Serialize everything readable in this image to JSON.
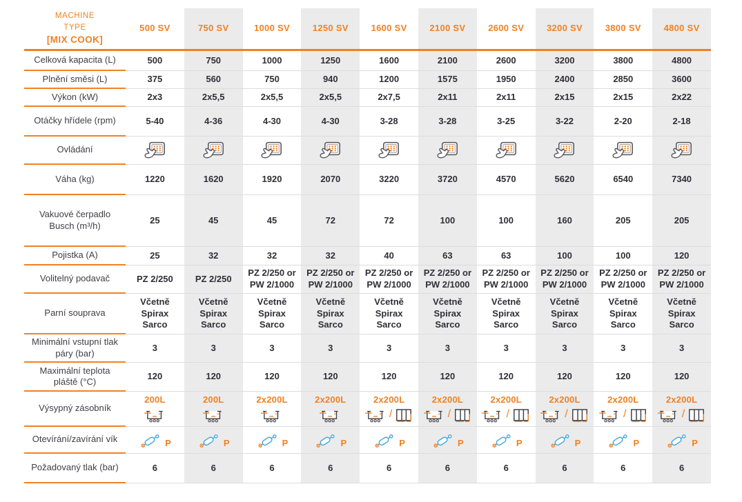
{
  "glyphs": {
    "slash": "/"
  },
  "colors": {
    "accent_orange": "#f08122",
    "icon_blue": "#3fa3de",
    "text_dark": "#2f2f37",
    "column_shade": "#ebebeb",
    "separator_gray": "#dcdcdc"
  },
  "table": {
    "corner": {
      "line1": "MACHINE",
      "line2": "TYPE",
      "line3": "[MIX COOK]"
    },
    "columns": [
      "500 SV",
      "750 SV",
      "1000 SV",
      "1250 SV",
      "1600 SV",
      "2100 SV",
      "2600 SV",
      "3200 SV",
      "3800 SV",
      "4800 SV"
    ],
    "rows": [
      {
        "label": "Celková kapacita (L)",
        "cells": [
          {
            "text": "500"
          },
          {
            "text": "750"
          },
          {
            "text": "1000"
          },
          {
            "text": "1250"
          },
          {
            "text": "1600"
          },
          {
            "text": "2100"
          },
          {
            "text": "2600"
          },
          {
            "text": "3200"
          },
          {
            "text": "3800"
          },
          {
            "text": "4800"
          }
        ]
      },
      {
        "label": "Plnění směsi (L)",
        "cells": [
          {
            "text": "375"
          },
          {
            "text": "560"
          },
          {
            "text": "750"
          },
          {
            "text": "940"
          },
          {
            "text": "1200"
          },
          {
            "text": "1575"
          },
          {
            "text": "1950"
          },
          {
            "text": "2400"
          },
          {
            "text": "2850"
          },
          {
            "text": "3600"
          }
        ]
      },
      {
        "label": "Výkon (kW)",
        "cells": [
          {
            "text": "2x3"
          },
          {
            "text": "2x5,5"
          },
          {
            "text": "2x5,5"
          },
          {
            "text": "2x5,5"
          },
          {
            "text": "2x7,5"
          },
          {
            "text": "2x11"
          },
          {
            "text": "2x11"
          },
          {
            "text": "2x15"
          },
          {
            "text": "2x15"
          },
          {
            "text": "2x22"
          }
        ]
      },
      {
        "label": "Otáčky hřídele (rpm)",
        "cells": [
          {
            "text": "5-40"
          },
          {
            "text": "4-36"
          },
          {
            "text": "4-30"
          },
          {
            "text": "4-30"
          },
          {
            "text": "3-28"
          },
          {
            "text": "3-28"
          },
          {
            "text": "3-25"
          },
          {
            "text": "3-22"
          },
          {
            "text": "2-20"
          },
          {
            "text": "2-18"
          }
        ]
      },
      {
        "label": "Ovládání",
        "cells": [
          {
            "icons": [
              "touch-panel"
            ]
          },
          {
            "icons": [
              "touch-panel"
            ]
          },
          {
            "icons": [
              "touch-panel"
            ]
          },
          {
            "icons": [
              "touch-panel"
            ]
          },
          {
            "icons": [
              "touch-panel"
            ]
          },
          {
            "icons": [
              "touch-panel"
            ]
          },
          {
            "icons": [
              "touch-panel"
            ]
          },
          {
            "icons": [
              "touch-panel"
            ]
          },
          {
            "icons": [
              "touch-panel"
            ]
          },
          {
            "icons": [
              "touch-panel"
            ]
          }
        ]
      },
      {
        "label": "Váha (kg)",
        "cells": [
          {
            "text": "1220"
          },
          {
            "text": "1620"
          },
          {
            "text": "1920"
          },
          {
            "text": "2070"
          },
          {
            "text": "3220"
          },
          {
            "text": "3720"
          },
          {
            "text": "4570"
          },
          {
            "text": "5620"
          },
          {
            "text": "6540"
          },
          {
            "text": "7340"
          }
        ]
      },
      {
        "label": "Vakuové čerpadlo Busch (m³/h)",
        "cells": [
          {
            "text": "25"
          },
          {
            "text": "45"
          },
          {
            "text": "45"
          },
          {
            "text": "72"
          },
          {
            "text": "72"
          },
          {
            "text": "100"
          },
          {
            "text": "100"
          },
          {
            "text": "160"
          },
          {
            "text": "205"
          },
          {
            "text": "205"
          }
        ]
      },
      {
        "label": "Pojistka (A)",
        "cells": [
          {
            "text": "25"
          },
          {
            "text": "32"
          },
          {
            "text": "32"
          },
          {
            "text": "32"
          },
          {
            "text": "40"
          },
          {
            "text": "63"
          },
          {
            "text": "63"
          },
          {
            "text": "100"
          },
          {
            "text": "100"
          },
          {
            "text": "120"
          }
        ]
      },
      {
        "label": "Volitelný podavač",
        "cells": [
          {
            "text": "PZ 2/250"
          },
          {
            "text": "PZ 2/250"
          },
          {
            "text": "PZ 2/250 or PW 2/1000"
          },
          {
            "text": "PZ 2/250 or PW 2/1000"
          },
          {
            "text": "PZ 2/250 or PW 2/1000"
          },
          {
            "text": "PZ 2/250 or PW 2/1000"
          },
          {
            "text": "PZ 2/250 or PW 2/1000"
          },
          {
            "text": "PZ 2/250 or PW 2/1000"
          },
          {
            "text": "PZ 2/250 or PW 2/1000"
          },
          {
            "text": "PZ 2/250 or PW 2/1000"
          }
        ]
      },
      {
        "label": "Parní souprava",
        "cells": [
          {
            "text": "Včetně Spirax Sarco"
          },
          {
            "text": "Včetně Spirax Sarco"
          },
          {
            "text": "Včetně Spirax Sarco"
          },
          {
            "text": "Včetně Spirax Sarco"
          },
          {
            "text": "Včetně Spirax Sarco"
          },
          {
            "text": "Včetně Spirax Sarco"
          },
          {
            "text": "Včetně Spirax Sarco"
          },
          {
            "text": "Včetně Spirax Sarco"
          },
          {
            "text": "Včetně Spirax Sarco"
          },
          {
            "text": "Včetně Spirax Sarco"
          }
        ]
      },
      {
        "label": "Minimální vstupní tlak páry (bar)",
        "cells": [
          {
            "text": "3"
          },
          {
            "text": "3"
          },
          {
            "text": "3"
          },
          {
            "text": "3"
          },
          {
            "text": "3"
          },
          {
            "text": "3"
          },
          {
            "text": "3"
          },
          {
            "text": "3"
          },
          {
            "text": "3"
          },
          {
            "text": "3"
          }
        ]
      },
      {
        "label": "Maximální teplota pláště (°C)",
        "cells": [
          {
            "text": "120"
          },
          {
            "text": "120"
          },
          {
            "text": "120"
          },
          {
            "text": "120"
          },
          {
            "text": "120"
          },
          {
            "text": "120"
          },
          {
            "text": "120"
          },
          {
            "text": "120"
          },
          {
            "text": "120"
          },
          {
            "text": "120"
          }
        ]
      },
      {
        "label": "Výsypný zásobník",
        "cells": [
          {
            "badge": "200L",
            "icons": [
              "cart"
            ]
          },
          {
            "badge": "200L",
            "icons": [
              "cart"
            ]
          },
          {
            "badge": "2x200L",
            "icons": [
              "cart"
            ]
          },
          {
            "badge": "2x200L",
            "icons": [
              "cart"
            ]
          },
          {
            "badge": "2x200L",
            "icons": [
              "cart",
              "slash",
              "bin"
            ]
          },
          {
            "badge": "2x200L",
            "icons": [
              "cart",
              "slash",
              "bin"
            ]
          },
          {
            "badge": "2x200L",
            "icons": [
              "cart",
              "slash",
              "bin"
            ]
          },
          {
            "badge": "2x200L",
            "icons": [
              "cart",
              "slash",
              "bin"
            ]
          },
          {
            "badge": "2x200L",
            "icons": [
              "cart",
              "slash",
              "bin"
            ]
          },
          {
            "badge": "2x200L",
            "icons": [
              "cart",
              "slash",
              "bin"
            ]
          }
        ]
      },
      {
        "label": "Otevírání/zavírání vík",
        "cells": [
          {
            "icons": [
              "cylinder"
            ],
            "suffix": "P"
          },
          {
            "icons": [
              "cylinder"
            ],
            "suffix": "P"
          },
          {
            "icons": [
              "cylinder"
            ],
            "suffix": "P"
          },
          {
            "icons": [
              "cylinder"
            ],
            "suffix": "P"
          },
          {
            "icons": [
              "cylinder"
            ],
            "suffix": "P"
          },
          {
            "icons": [
              "cylinder"
            ],
            "suffix": "P"
          },
          {
            "icons": [
              "cylinder"
            ],
            "suffix": "P"
          },
          {
            "icons": [
              "cylinder"
            ],
            "suffix": "P"
          },
          {
            "icons": [
              "cylinder"
            ],
            "suffix": "P"
          },
          {
            "icons": [
              "cylinder"
            ],
            "suffix": "P"
          }
        ]
      },
      {
        "label": "Požadovaný tlak (bar)",
        "cells": [
          {
            "text": "6"
          },
          {
            "text": "6"
          },
          {
            "text": "6"
          },
          {
            "text": "6"
          },
          {
            "text": "6"
          },
          {
            "text": "6"
          },
          {
            "text": "6"
          },
          {
            "text": "6"
          },
          {
            "text": "6"
          },
          {
            "text": "6"
          }
        ]
      }
    ]
  }
}
